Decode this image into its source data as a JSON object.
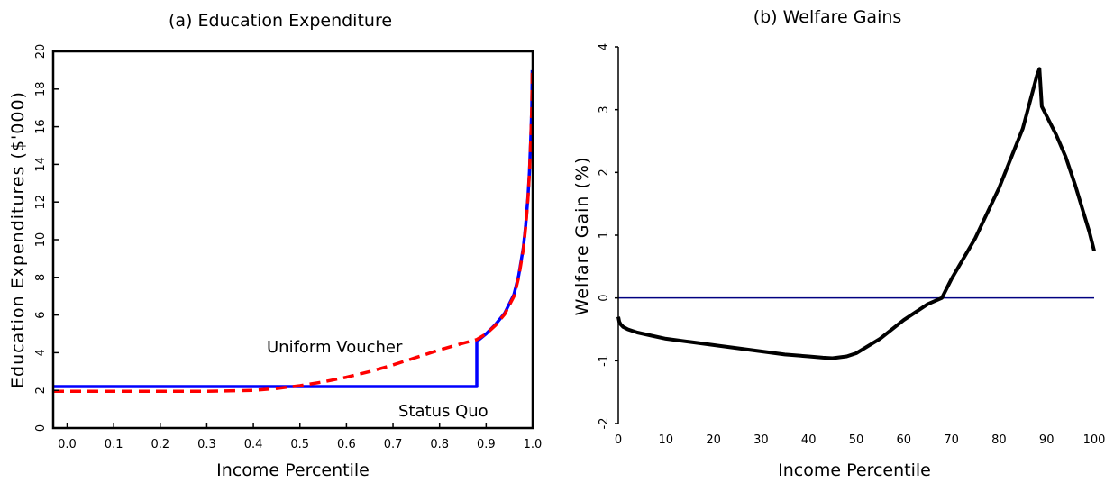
{
  "chart_data": [
    {
      "type": "line",
      "title": "(a) Education Expenditure",
      "xlabel": "Income Percentile",
      "ylabel": "Education Expenditures ($'000)",
      "xlim": [
        -0.03,
        1.0
      ],
      "ylim": [
        0,
        20
      ],
      "xticks": [
        "0.0",
        "0.1",
        "0.2",
        "0.3",
        "0.4",
        "0.5",
        "0.6",
        "0.7",
        "0.8",
        "0.9",
        "1.0"
      ],
      "yticks": [
        "0",
        "2",
        "4",
        "6",
        "8",
        "10",
        "12",
        "14",
        "16",
        "18",
        "20"
      ],
      "grid": false,
      "annotations": [
        "Uniform Voucher",
        "Status Quo"
      ],
      "series": [
        {
          "name": "Status Quo",
          "color": "#0000ff",
          "style": "solid",
          "x": [
            -0.03,
            0.88,
            0.88,
            0.9,
            0.92,
            0.94,
            0.96,
            0.97,
            0.98,
            0.985,
            0.99,
            0.993,
            0.996,
            0.998,
            0.999
          ],
          "y": [
            2.2,
            2.2,
            4.6,
            5.0,
            5.5,
            6.1,
            7.1,
            8.1,
            9.6,
            10.8,
            12.3,
            13.6,
            15.4,
            17.0,
            19.0
          ]
        },
        {
          "name": "Uniform Voucher",
          "color": "#ff0000",
          "style": "dashed",
          "x": [
            -0.03,
            0.1,
            0.2,
            0.3,
            0.4,
            0.45,
            0.5,
            0.55,
            0.6,
            0.65,
            0.7,
            0.75,
            0.8,
            0.85,
            0.88,
            0.9,
            0.92,
            0.94,
            0.96,
            0.97,
            0.98,
            0.985,
            0.99,
            0.993,
            0.996,
            0.998,
            0.999
          ],
          "y": [
            1.95,
            1.95,
            1.95,
            1.95,
            2.0,
            2.1,
            2.25,
            2.45,
            2.7,
            3.0,
            3.35,
            3.75,
            4.15,
            4.5,
            4.7,
            5.0,
            5.45,
            6.05,
            7.0,
            8.0,
            9.5,
            10.7,
            12.2,
            13.5,
            15.3,
            17.0,
            19.0
          ]
        }
      ]
    },
    {
      "type": "line",
      "title": "(b) Welfare Gains",
      "xlabel": "Income Percentile",
      "ylabel": "Welfare Gain (%)",
      "xlim": [
        0,
        100
      ],
      "ylim": [
        -2,
        4
      ],
      "xticks": [
        "0",
        "10",
        "20",
        "30",
        "40",
        "50",
        "60",
        "70",
        "80",
        "90",
        "100"
      ],
      "yticks": [
        "-2",
        "-1",
        "0",
        "1",
        "2",
        "3",
        "4"
      ],
      "grid": false,
      "reference_line": {
        "y": 0,
        "color": "#000080"
      },
      "series": [
        {
          "color": "#000000",
          "style": "solid",
          "x": [
            0,
            0.2,
            0.5,
            1,
            2,
            4,
            7,
            10,
            15,
            20,
            25,
            30,
            35,
            40,
            43,
            45,
            48,
            50,
            55,
            60,
            65,
            68,
            70,
            75,
            80,
            85,
            88,
            88.5,
            89,
            90,
            92,
            94,
            96,
            98,
            99,
            100
          ],
          "y": [
            -0.3,
            -0.38,
            -0.42,
            -0.46,
            -0.5,
            -0.55,
            -0.6,
            -0.65,
            -0.7,
            -0.75,
            -0.8,
            -0.85,
            -0.9,
            -0.93,
            -0.95,
            -0.96,
            -0.93,
            -0.88,
            -0.65,
            -0.35,
            -0.1,
            0.0,
            0.3,
            0.95,
            1.75,
            2.7,
            3.55,
            3.65,
            3.05,
            2.9,
            2.6,
            2.25,
            1.8,
            1.3,
            1.05,
            0.75
          ]
        }
      ]
    }
  ]
}
